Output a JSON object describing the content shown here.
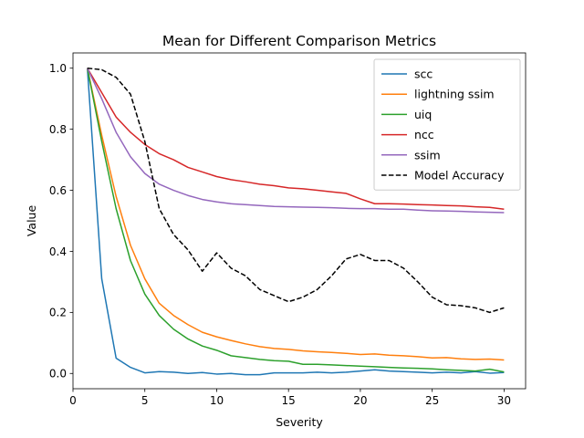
{
  "chart_data": {
    "type": "line",
    "title": "Mean for Different Comparison Metrics",
    "xlabel": "Severity",
    "ylabel": "Value",
    "xlim": [
      0,
      31.5
    ],
    "ylim": [
      -0.05,
      1.05
    ],
    "xticks": [
      0,
      5,
      10,
      15,
      20,
      25,
      30
    ],
    "yticks": [
      0.0,
      0.2,
      0.4,
      0.6,
      0.8,
      1.0
    ],
    "xtick_labels": [
      "0",
      "5",
      "10",
      "15",
      "20",
      "25",
      "30"
    ],
    "ytick_labels": [
      "0.0",
      "0.2",
      "0.4",
      "0.6",
      "0.8",
      "1.0"
    ],
    "grid": false,
    "legend_position": "top-right",
    "x": [
      1,
      2,
      3,
      4,
      5,
      6,
      7,
      8,
      9,
      10,
      11,
      12,
      13,
      14,
      15,
      16,
      17,
      18,
      19,
      20,
      21,
      22,
      23,
      24,
      25,
      26,
      27,
      28,
      29,
      30
    ],
    "series": [
      {
        "name": "scc",
        "color": "#1f77b4",
        "dashed": false,
        "values": [
          1.0,
          0.31,
          0.05,
          0.02,
          0.002,
          0.006,
          0.004,
          0.0,
          0.003,
          -0.002,
          0.0,
          -0.004,
          -0.004,
          0.002,
          0.002,
          0.002,
          0.004,
          0.002,
          0.004,
          0.008,
          0.012,
          0.008,
          0.006,
          0.004,
          0.002,
          0.004,
          0.002,
          0.006,
          0.001,
          0.003
        ]
      },
      {
        "name": "lightning ssim",
        "color": "#ff7f0e",
        "dashed": false,
        "values": [
          1.0,
          0.78,
          0.58,
          0.42,
          0.31,
          0.23,
          0.19,
          0.16,
          0.135,
          0.12,
          0.108,
          0.097,
          0.088,
          0.082,
          0.079,
          0.074,
          0.071,
          0.069,
          0.066,
          0.062,
          0.064,
          0.06,
          0.058,
          0.055,
          0.051,
          0.052,
          0.048,
          0.046,
          0.047,
          0.044
        ]
      },
      {
        "name": "uiq",
        "color": "#2ca02c",
        "dashed": false,
        "values": [
          1.0,
          0.76,
          0.54,
          0.37,
          0.26,
          0.19,
          0.145,
          0.113,
          0.09,
          0.076,
          0.058,
          0.052,
          0.046,
          0.042,
          0.04,
          0.03,
          0.03,
          0.028,
          0.026,
          0.024,
          0.022,
          0.02,
          0.018,
          0.017,
          0.015,
          0.012,
          0.01,
          0.008,
          0.014,
          0.005
        ]
      },
      {
        "name": "ncc",
        "color": "#d62728",
        "dashed": false,
        "values": [
          1.0,
          0.92,
          0.84,
          0.79,
          0.75,
          0.72,
          0.7,
          0.675,
          0.66,
          0.645,
          0.635,
          0.628,
          0.62,
          0.615,
          0.608,
          0.605,
          0.6,
          0.595,
          0.59,
          0.572,
          0.556,
          0.556,
          0.555,
          0.553,
          0.552,
          0.55,
          0.549,
          0.546,
          0.544,
          0.538
        ]
      },
      {
        "name": "ssim",
        "color": "#9467bd",
        "dashed": false,
        "values": [
          1.0,
          0.9,
          0.79,
          0.71,
          0.655,
          0.62,
          0.6,
          0.583,
          0.57,
          0.562,
          0.556,
          0.553,
          0.55,
          0.547,
          0.546,
          0.545,
          0.544,
          0.543,
          0.541,
          0.54,
          0.54,
          0.538,
          0.538,
          0.535,
          0.533,
          0.532,
          0.531,
          0.529,
          0.528,
          0.527
        ]
      },
      {
        "name": "Model Accuracy",
        "color": "#000000",
        "dashed": true,
        "values": [
          1.0,
          0.995,
          0.97,
          0.915,
          0.76,
          0.54,
          0.455,
          0.405,
          0.335,
          0.395,
          0.345,
          0.32,
          0.275,
          0.255,
          0.235,
          0.25,
          0.275,
          0.32,
          0.375,
          0.39,
          0.37,
          0.37,
          0.345,
          0.3,
          0.25,
          0.225,
          0.222,
          0.215,
          0.2,
          0.215
        ]
      }
    ]
  }
}
